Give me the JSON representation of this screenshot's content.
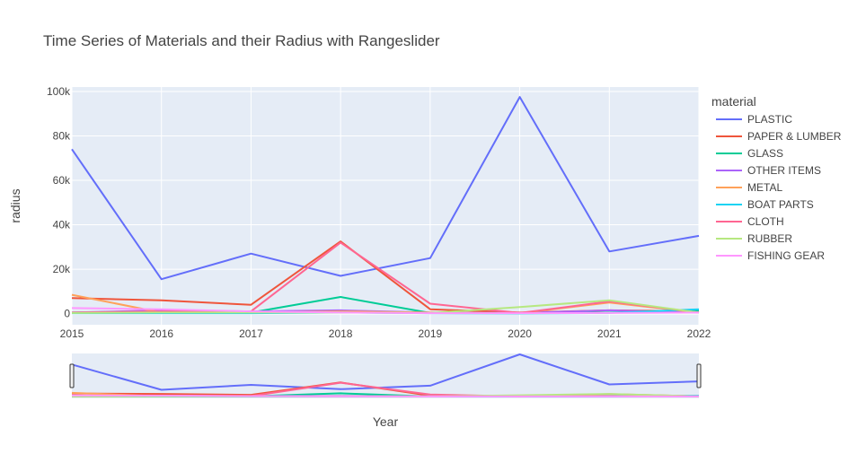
{
  "chart_data": {
    "type": "line",
    "title": "Time Series of Materials and their Radius with Rangeslider",
    "xlabel": "Year",
    "ylabel": "radius",
    "x": [
      2015,
      2016,
      2017,
      2018,
      2019,
      2020,
      2021,
      2022
    ],
    "xlim": [
      2015,
      2022
    ],
    "ylim": [
      -5000,
      102000
    ],
    "yticks": [
      0,
      20000,
      40000,
      60000,
      80000,
      100000
    ],
    "ytick_labels": [
      "0",
      "20k",
      "40k",
      "60k",
      "80k",
      "100k"
    ],
    "xtick_labels": [
      "2015",
      "2016",
      "2017",
      "2018",
      "2019",
      "2020",
      "2021",
      "2022"
    ],
    "grid": true,
    "legend": {
      "title": "material",
      "placement": "right"
    },
    "rangeslider": true,
    "series": [
      {
        "name": "PLASTIC",
        "color": "#636efa",
        "values": [
          74000,
          15500,
          27000,
          17000,
          25000,
          97500,
          28000,
          35000
        ]
      },
      {
        "name": "PAPER & LUMBER",
        "color": "#EF553B",
        "values": [
          7000,
          6000,
          4000,
          32500,
          2000,
          500,
          1500,
          1000
        ]
      },
      {
        "name": "GLASS",
        "color": "#00cc96",
        "values": [
          500,
          1000,
          500,
          7500,
          300,
          200,
          500,
          1500
        ]
      },
      {
        "name": "OTHER ITEMS",
        "color": "#ab63fa",
        "values": [
          500,
          1500,
          1000,
          1500,
          500,
          300,
          1500,
          500
        ]
      },
      {
        "name": "METAL",
        "color": "#FFA15A",
        "values": [
          8500,
          500,
          500,
          1000,
          500,
          200,
          5000,
          500
        ]
      },
      {
        "name": "BOAT PARTS",
        "color": "#19d3f3",
        "values": [
          200,
          200,
          200,
          500,
          200,
          100,
          300,
          2000
        ]
      },
      {
        "name": "CLOTH",
        "color": "#FF6692",
        "values": [
          500,
          1000,
          1000,
          32000,
          4500,
          300,
          5500,
          500
        ]
      },
      {
        "name": "RUBBER",
        "color": "#B6E880",
        "values": [
          300,
          500,
          500,
          500,
          300,
          3000,
          6000,
          500
        ]
      },
      {
        "name": "FISHING GEAR",
        "color": "#FF97FF",
        "values": [
          2500,
          2000,
          1000,
          500,
          200,
          200,
          300,
          500
        ]
      }
    ]
  },
  "colors": {
    "plot_background": "#e5ecf6",
    "grid": "#ffffff",
    "text": "#444444"
  }
}
